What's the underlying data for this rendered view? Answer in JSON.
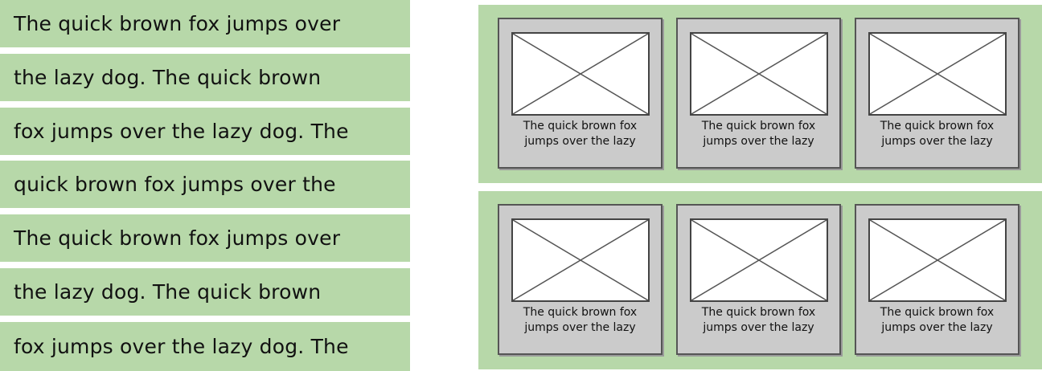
{
  "text_list": {
    "rows": [
      "The quick brown fox jumps over",
      "the lazy dog. The quick brown",
      "fox jumps over the lazy dog. The",
      "quick brown fox jumps over the",
      "The quick brown fox jumps over",
      "the lazy dog. The quick brown",
      "fox jumps over the lazy dog. The"
    ]
  },
  "grid": {
    "panels": [
      {
        "cards": [
          {
            "caption_line1": "The quick brown fox",
            "caption_line2": "jumps over the lazy"
          },
          {
            "caption_line1": "The quick brown fox",
            "caption_line2": "jumps over the lazy"
          },
          {
            "caption_line1": "The quick brown fox",
            "caption_line2": "jumps over the lazy"
          }
        ]
      },
      {
        "cards": [
          {
            "caption_line1": "The quick brown fox",
            "caption_line2": "jumps over the lazy"
          },
          {
            "caption_line1": "The quick brown fox",
            "caption_line2": "jumps over the lazy"
          },
          {
            "caption_line1": "The quick brown fox",
            "caption_line2": "jumps over the lazy"
          }
        ]
      }
    ]
  },
  "colors": {
    "panel_background": "#b7d8a9",
    "card_background": "#cbcbcb",
    "thumbnail_background": "#ffffff",
    "border": "#555555"
  },
  "icons": {
    "thumbnail": "image-placeholder-icon"
  }
}
